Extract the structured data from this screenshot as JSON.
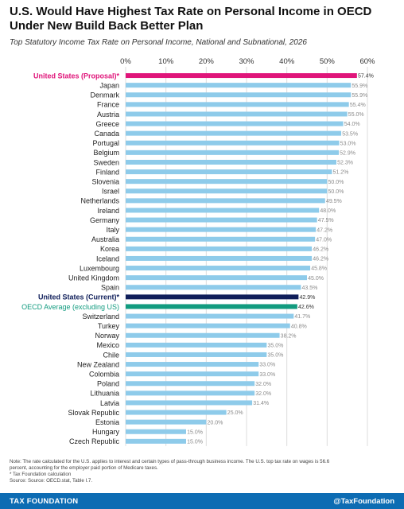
{
  "title": "U.S. Would Have Highest Tax Rate on Personal Income in OECD Under New Build Back Better Plan",
  "subtitle": "Top Statutory Income Tax Rate on Personal Income, National and Subnational, 2026",
  "chart_data": {
    "type": "bar",
    "orientation": "horizontal",
    "xlim": [
      0,
      60
    ],
    "x_ticks": [
      "0%",
      "10%",
      "20%",
      "30%",
      "40%",
      "50%",
      "60%"
    ],
    "x_tick_values": [
      0,
      10,
      20,
      30,
      40,
      50,
      60
    ],
    "grid": true,
    "categories": [
      "United States (Proposal)*",
      "Japan",
      "Denmark",
      "France",
      "Austria",
      "Greece",
      "Canada",
      "Portugal",
      "Belgium",
      "Sweden",
      "Finland",
      "Slovenia",
      "Israel",
      "Netherlands",
      "Ireland",
      "Germany",
      "Italy",
      "Australia",
      "Korea",
      "Iceland",
      "Luxembourg",
      "United Kingdom",
      "Spain",
      "United States (Current)*",
      "OECD Average (excluding US)",
      "Switzerland",
      "Turkey",
      "Norway",
      "Mexico",
      "Chile",
      "New Zealand",
      "Colombia",
      "Poland",
      "Lithuania",
      "Latvia",
      "Slovak Republic",
      "Estonia",
      "Hungary",
      "Czech Republic"
    ],
    "values": [
      57.4,
      55.9,
      55.9,
      55.4,
      55.0,
      54.0,
      53.5,
      53.0,
      52.9,
      52.3,
      51.2,
      50.0,
      50.0,
      49.5,
      48.0,
      47.5,
      47.2,
      47.0,
      46.2,
      46.2,
      45.8,
      45.0,
      43.5,
      42.9,
      42.6,
      41.7,
      40.8,
      38.2,
      35.0,
      35.0,
      33.0,
      33.0,
      32.0,
      32.0,
      31.4,
      25.0,
      20.0,
      15.0,
      15.0
    ],
    "value_labels": [
      "57.4%",
      "55.9%",
      "55.9%",
      "55.4%",
      "55.0%",
      "54.0%",
      "53.5%",
      "53.0%",
      "52.9%",
      "52.3%",
      "51.2%",
      "50.0%",
      "50.0%",
      "49.5%",
      "48.0%",
      "47.5%",
      "47.2%",
      "47.0%",
      "46.2%",
      "46.2%",
      "45.8%",
      "45.0%",
      "43.5%",
      "42.9%",
      "42.6%",
      "41.7%",
      "40.8%",
      "38.2%",
      "35.0%",
      "35.0%",
      "33.0%",
      "33.0%",
      "32.0%",
      "32.0%",
      "31.4%",
      "25.0%",
      "20.0%",
      "15.0%",
      "15.0%"
    ],
    "colors": {
      "default": "#8ecbea",
      "United States (Proposal)*": "#e0157a",
      "United States (Current)*": "#0f1e5a",
      "OECD Average (excluding US)": "#119b7f"
    },
    "highlight_label_colors": {
      "United States (Proposal)*": "#e0157a",
      "United States (Current)*": "#0f1e5a",
      "OECD Average (excluding US)": "#119b7f"
    }
  },
  "notes": {
    "line1": "Note: The rate calculated for the U.S. applies to interest and certain types of pass-through business income. The U.S. top tax rate on wages is 56.6",
    "line2": "percent, accounting for the employer paid portion of Medicare taxes.",
    "line3": "* Tax Foundation calculation",
    "line4": "Source: Source: OECD.stat, Table I.7."
  },
  "footer": {
    "left": "TAX FOUNDATION",
    "right": "@TaxFoundation",
    "background": "#0d6cb3"
  }
}
